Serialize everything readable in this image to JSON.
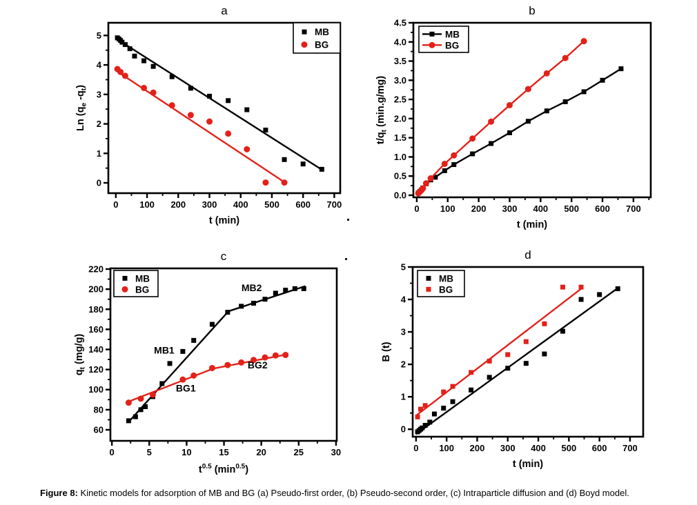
{
  "figure": {
    "caption_label": "Figure 8:",
    "caption_text": " Kinetic models for adsorption of MB and BG (a) Pseudo-first order, (b) Pseudo-second order, (c) Intraparticle diffusion and (d) Boyd model."
  },
  "colors": {
    "mb": "#000000",
    "bg": "#e32119",
    "axis": "#000000",
    "background": "#ffffff"
  },
  "stray_marks": [
    ".",
    "."
  ],
  "chart_data": [
    {
      "id": "a",
      "type": "scatter",
      "title": "a",
      "xlabel": [
        {
          "t": "t (min)"
        }
      ],
      "ylabel": [
        {
          "t": "Ln (q"
        },
        {
          "t": "e",
          "s": "sub"
        },
        {
          "t": " -q"
        },
        {
          "t": "t",
          "s": "sub"
        },
        {
          "t": ")"
        }
      ],
      "xlim": [
        -24,
        719
      ],
      "ylim": [
        -0.35,
        5.43
      ],
      "xticks": {
        "values": [
          0,
          100,
          200,
          300,
          400,
          500,
          600,
          700
        ],
        "labels": [
          "0",
          "100",
          "200",
          "300",
          "400",
          "500",
          "600",
          "700"
        ]
      },
      "yticks": {
        "values": [
          0,
          1,
          2,
          3,
          4,
          5
        ],
        "labels": [
          "0",
          "1",
          "2",
          "3",
          "4",
          "5"
        ]
      },
      "minor_x": true,
      "minor_y": true,
      "grid": false,
      "legend": {
        "position": "top-right",
        "items": [
          {
            "label": "MB",
            "color": "#000000",
            "marker": "square"
          },
          {
            "label": "BG",
            "color": "#e32119",
            "marker": "circle"
          }
        ]
      },
      "series": [
        {
          "name": "MB-fit",
          "color": "#000000",
          "line": [
            [
              0,
              4.9
            ],
            [
              658,
              0.46
            ]
          ]
        },
        {
          "name": "BG-fit",
          "color": "#e32119",
          "line": [
            [
              0,
              3.81
            ],
            [
              542,
              0.01
            ]
          ]
        },
        {
          "name": "MB",
          "color": "#000000",
          "marker": "square",
          "connect": false,
          "points": [
            [
              5,
              4.92
            ],
            [
              10,
              4.88
            ],
            [
              15,
              4.83
            ],
            [
              20,
              4.77
            ],
            [
              30,
              4.69
            ],
            [
              45,
              4.55
            ],
            [
              60,
              4.3
            ],
            [
              90,
              4.14
            ],
            [
              120,
              3.95
            ],
            [
              180,
              3.6
            ],
            [
              240,
              3.21
            ],
            [
              300,
              2.94
            ],
            [
              360,
              2.79
            ],
            [
              420,
              2.48
            ],
            [
              480,
              1.79
            ],
            [
              540,
              0.79
            ],
            [
              600,
              0.64
            ],
            [
              660,
              0.46
            ]
          ]
        },
        {
          "name": "BG",
          "color": "#e32119",
          "marker": "circle",
          "connect": false,
          "points": [
            [
              5,
              3.86
            ],
            [
              15,
              3.76
            ],
            [
              30,
              3.63
            ],
            [
              90,
              3.22
            ],
            [
              120,
              3.06
            ],
            [
              180,
              2.63
            ],
            [
              240,
              2.3
            ],
            [
              300,
              2.08
            ],
            [
              360,
              1.67
            ],
            [
              420,
              1.14
            ],
            [
              480,
              0.01
            ],
            [
              540,
              0.01
            ]
          ]
        }
      ],
      "annotations": []
    },
    {
      "id": "b",
      "type": "line",
      "title": "b",
      "xlabel": [
        {
          "t": "t (min)"
        }
      ],
      "ylabel": [
        {
          "t": "t/q"
        },
        {
          "t": "t",
          "s": "sub"
        },
        {
          "t": " (min.g/mg)"
        }
      ],
      "xlim": [
        -11,
        756
      ],
      "ylim": [
        -0.054,
        4.5
      ],
      "xticks": {
        "values": [
          0,
          100,
          200,
          300,
          400,
          500,
          600,
          700
        ],
        "labels": [
          "0",
          "100",
          "200",
          "300",
          "400",
          "500",
          "600",
          "700"
        ]
      },
      "yticks": {
        "values": [
          0,
          0.5,
          1,
          1.5,
          2,
          2.5,
          3,
          3.5,
          4,
          4.5
        ],
        "labels": [
          "0.0",
          "0.5",
          "1.0",
          "1.5",
          "2.0",
          "2.5",
          "3.0",
          "3.5",
          "4.0",
          "4.5"
        ]
      },
      "minor_x": true,
      "minor_y": true,
      "grid": false,
      "legend": {
        "position": "top-left",
        "items": [
          {
            "label": "MB",
            "color": "#000000",
            "marker": "square"
          },
          {
            "label": "BG",
            "color": "#e32119",
            "marker": "circle"
          }
        ]
      },
      "series": [
        {
          "name": "MB",
          "color": "#000000",
          "marker": "square",
          "connect": true,
          "points": [
            [
              5,
              0.06
            ],
            [
              10,
              0.1
            ],
            [
              15,
              0.14
            ],
            [
              20,
              0.19
            ],
            [
              30,
              0.3
            ],
            [
              45,
              0.4
            ],
            [
              60,
              0.47
            ],
            [
              90,
              0.64
            ],
            [
              120,
              0.8
            ],
            [
              180,
              1.08
            ],
            [
              240,
              1.35
            ],
            [
              300,
              1.63
            ],
            [
              360,
              1.93
            ],
            [
              420,
              2.2
            ],
            [
              480,
              2.44
            ],
            [
              540,
              2.7
            ],
            [
              600,
              3.0
            ],
            [
              660,
              3.3
            ]
          ]
        },
        {
          "name": "BG",
          "color": "#e32119",
          "marker": "circle",
          "connect": true,
          "points": [
            [
              5,
              0.05
            ],
            [
              10,
              0.09
            ],
            [
              15,
              0.13
            ],
            [
              20,
              0.18
            ],
            [
              30,
              0.31
            ],
            [
              45,
              0.44
            ],
            [
              90,
              0.82
            ],
            [
              120,
              1.04
            ],
            [
              180,
              1.48
            ],
            [
              240,
              1.92
            ],
            [
              300,
              2.35
            ],
            [
              360,
              2.77
            ],
            [
              420,
              3.18
            ],
            [
              480,
              3.58
            ],
            [
              540,
              4.02
            ]
          ]
        }
      ],
      "annotations": []
    },
    {
      "id": "c",
      "type": "scatter",
      "title": "c",
      "xlabel": [
        {
          "t": "t"
        },
        {
          "t": "0.5",
          "s": "sup"
        },
        {
          "t": " (min"
        },
        {
          "t": "0.5",
          "s": "sup"
        },
        {
          "t": ")"
        }
      ],
      "ylabel": [
        {
          "t": "q"
        },
        {
          "t": "t",
          "s": "sub"
        },
        {
          "t": " (mg/g)"
        }
      ],
      "xlim": [
        -0.2,
        30.1
      ],
      "ylim": [
        49,
        220.7
      ],
      "xticks": {
        "values": [
          0,
          5,
          10,
          15,
          20,
          25,
          30
        ],
        "labels": [
          "0",
          "5",
          "10",
          "15",
          "20",
          "25",
          "30"
        ]
      },
      "yticks": {
        "values": [
          60,
          80,
          100,
          120,
          140,
          160,
          180,
          200,
          220
        ],
        "labels": [
          "60",
          "80",
          "100",
          "120",
          "140",
          "160",
          "180",
          "200",
          "220"
        ]
      },
      "minor_x": true,
      "minor_y": true,
      "grid": false,
      "legend": {
        "position": "top-left",
        "items": [
          {
            "label": "MB",
            "color": "#000000",
            "marker": "square"
          },
          {
            "label": "BG",
            "color": "#e32119",
            "marker": "circle"
          }
        ]
      },
      "series": [
        {
          "name": "MB1-fit",
          "color": "#000000",
          "line": [
            [
              2.2,
              67.5
            ],
            [
              15.6,
              178
            ]
          ]
        },
        {
          "name": "MB2-fit",
          "color": "#000000",
          "line": [
            [
              15.6,
              178
            ],
            [
              25.9,
              203
            ]
          ]
        },
        {
          "name": "BG1-fit",
          "color": "#e32119",
          "line": [
            [
              2.2,
              88
            ],
            [
              13.6,
              121
            ]
          ]
        },
        {
          "name": "BG2-fit",
          "color": "#e32119",
          "line": [
            [
              13.6,
              121
            ],
            [
              23.4,
              135
            ]
          ]
        },
        {
          "name": "MB",
          "color": "#000000",
          "marker": "square",
          "connect": false,
          "points": [
            [
              2.24,
              69
            ],
            [
              3.16,
              73
            ],
            [
              3.87,
              80
            ],
            [
              4.47,
              83
            ],
            [
              5.48,
              93
            ],
            [
              6.71,
              106
            ],
            [
              7.75,
              126
            ],
            [
              9.49,
              138
            ],
            [
              10.95,
              149
            ],
            [
              13.42,
              165
            ],
            [
              15.49,
              177
            ],
            [
              17.32,
              183
            ],
            [
              18.97,
              186
            ],
            [
              20.49,
              190
            ],
            [
              21.91,
              196
            ],
            [
              23.24,
              199
            ],
            [
              24.49,
              200.5
            ],
            [
              25.69,
              200.5
            ]
          ]
        },
        {
          "name": "BG",
          "color": "#e32119",
          "marker": "circle",
          "connect": false,
          "points": [
            [
              2.24,
              87
            ],
            [
              3.87,
              91
            ],
            [
              5.48,
              95
            ],
            [
              9.49,
              110
            ],
            [
              10.95,
              114
            ],
            [
              13.42,
              121.5
            ],
            [
              15.49,
              124.5
            ],
            [
              17.32,
              127
            ],
            [
              18.97,
              129.5
            ],
            [
              20.49,
              132
            ],
            [
              21.91,
              134
            ],
            [
              23.24,
              134.5
            ]
          ]
        }
      ],
      "annotations": [
        {
          "text": "MB1",
          "x": 7.0,
          "y": 136
        },
        {
          "text": "MB2",
          "x": 18.7,
          "y": 198
        },
        {
          "text": "BG1",
          "x": 9.9,
          "y": 98
        },
        {
          "text": "BG2",
          "x": 19.5,
          "y": 121
        }
      ]
    },
    {
      "id": "d",
      "type": "scatter",
      "title": "d",
      "xlabel": [
        {
          "t": "t (min)"
        }
      ],
      "ylabel": [
        {
          "t": "B (t)"
        }
      ],
      "xlim": [
        -11,
        743
      ],
      "ylim": [
        -0.23,
        5.0
      ],
      "xticks": {
        "values": [
          0,
          100,
          200,
          300,
          400,
          500,
          600,
          700
        ],
        "labels": [
          "0",
          "100",
          "200",
          "300",
          "400",
          "500",
          "600",
          "700"
        ]
      },
      "yticks": {
        "values": [
          0,
          1,
          2,
          3,
          4,
          5
        ],
        "labels": [
          "0",
          "1",
          "2",
          "3",
          "4",
          "5"
        ]
      },
      "minor_x": true,
      "minor_y": true,
      "grid": false,
      "legend": {
        "position": "top-left",
        "items": [
          {
            "label": "MB",
            "color": "#000000",
            "marker": "square"
          },
          {
            "label": "BG",
            "color": "#e32119",
            "marker": "square"
          }
        ]
      },
      "series": [
        {
          "name": "MB-fit",
          "color": "#000000",
          "line": [
            [
              0,
              -0.15
            ],
            [
              660,
              4.35
            ]
          ]
        },
        {
          "name": "BG-fit",
          "color": "#e32119",
          "line": [
            [
              0,
              0.42
            ],
            [
              540,
              4.33
            ]
          ]
        },
        {
          "name": "MB",
          "color": "#000000",
          "marker": "square",
          "connect": false,
          "points": [
            [
              5,
              -0.08
            ],
            [
              10,
              -0.04
            ],
            [
              15,
              0.0
            ],
            [
              20,
              0.04
            ],
            [
              30,
              0.12
            ],
            [
              45,
              0.22
            ],
            [
              60,
              0.47
            ],
            [
              90,
              0.65
            ],
            [
              120,
              0.85
            ],
            [
              180,
              1.21
            ],
            [
              240,
              1.6
            ],
            [
              300,
              1.88
            ],
            [
              360,
              2.03
            ],
            [
              420,
              2.32
            ],
            [
              480,
              3.02
            ],
            [
              540,
              4.0
            ],
            [
              600,
              4.15
            ],
            [
              660,
              4.33
            ]
          ]
        },
        {
          "name": "BG",
          "color": "#e32119",
          "marker": "square",
          "connect": false,
          "points": [
            [
              5,
              0.38
            ],
            [
              15,
              0.62
            ],
            [
              30,
              0.73
            ],
            [
              90,
              1.15
            ],
            [
              120,
              1.32
            ],
            [
              180,
              1.75
            ],
            [
              240,
              2.1
            ],
            [
              300,
              2.3
            ],
            [
              360,
              2.7
            ],
            [
              420,
              3.25
            ],
            [
              480,
              4.38
            ],
            [
              540,
              4.38
            ]
          ]
        }
      ],
      "annotations": []
    }
  ]
}
